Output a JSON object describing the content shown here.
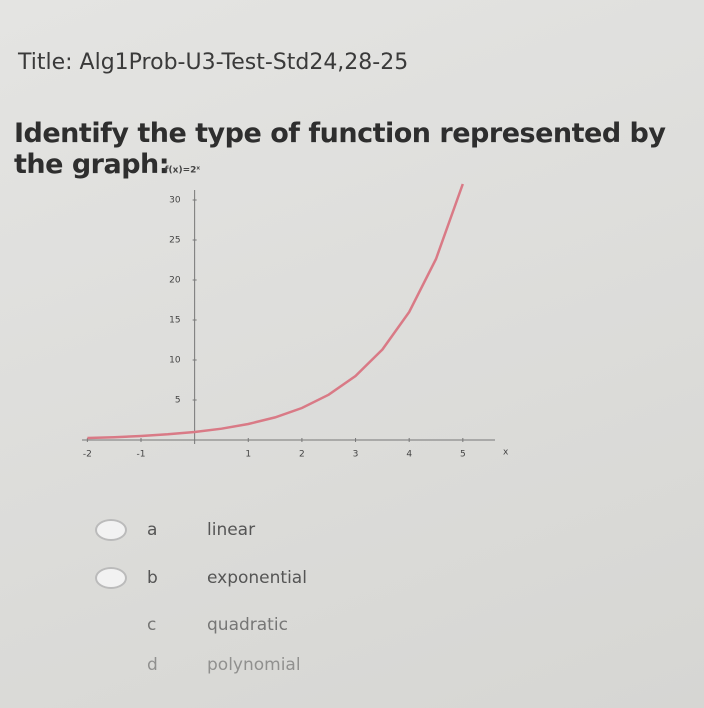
{
  "header": {
    "title": "Title: Alg1Prob-U3-Test-Std24,28-25"
  },
  "question": "Identify the type of function represented by the graph:",
  "chart_data": {
    "type": "line",
    "title": "f(x)=2ˣ",
    "xlabel": "x",
    "x": [
      -2,
      -1.5,
      -1,
      -0.5,
      0,
      0.5,
      1,
      1.5,
      2,
      2.5,
      3,
      3.5,
      4,
      4.5,
      5
    ],
    "values": [
      0.25,
      0.35,
      0.5,
      0.71,
      1,
      1.41,
      2,
      2.83,
      4,
      5.66,
      8,
      11.31,
      16,
      22.63,
      32
    ],
    "color": "#d97a86",
    "xlim": [
      -2.1,
      5.6
    ],
    "ylim": [
      0,
      32
    ],
    "xticks": [
      -2,
      -1,
      1,
      2,
      3,
      4,
      5
    ],
    "yticks": [
      5,
      10,
      15,
      20,
      25,
      30
    ]
  },
  "options": [
    {
      "letter": "a",
      "text": "linear"
    },
    {
      "letter": "b",
      "text": "exponential"
    },
    {
      "letter": "c",
      "text": "quadratic"
    },
    {
      "letter": "d",
      "text": "polynomial"
    }
  ]
}
